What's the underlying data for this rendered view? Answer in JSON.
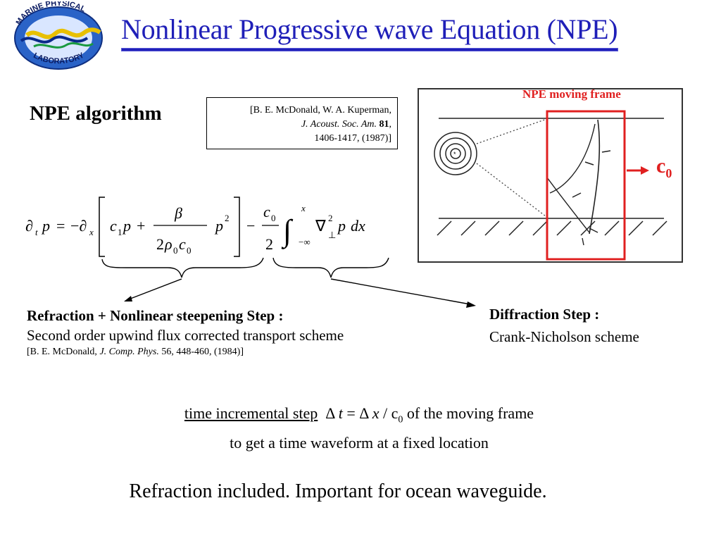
{
  "header": {
    "title": "Nonlinear Progressive wave Equation (NPE)",
    "logo_text_top": "MARINE PHYSICAL",
    "logo_text_bottom": "LABORATORY"
  },
  "algorithm": {
    "heading": "NPE algorithm",
    "reference": {
      "line1": "[B. E. McDonald, W. A. Kuperman,",
      "journal": "J. Acoust. Soc. Am.",
      "volume": "81",
      "line3": "1406-1417, (1987)]"
    }
  },
  "figure": {
    "frame_label": "NPE moving frame",
    "speed_label": "c",
    "speed_subscript": "0",
    "colors": {
      "frame": "#e02020",
      "arrow": "#e02020"
    }
  },
  "refraction": {
    "title": "Refraction + Nonlinear steepening Step :",
    "description": "Second order upwind flux corrected transport scheme",
    "cite_pre": "[B. E. McDonald,",
    "cite_journal": "J. Comp. Phys.",
    "cite_post": "56, 448-460, (1984)]"
  },
  "diffraction": {
    "title": "Diffraction Step :",
    "description": "Crank-Nicholson scheme"
  },
  "time_step": {
    "label": "time incremental step",
    "suffix": "of the moving frame",
    "line2": "to get a time waveform at a fixed location"
  },
  "note": "Refraction included. Important for ocean waveguide.",
  "colors": {
    "title": "#1f1fb8"
  }
}
